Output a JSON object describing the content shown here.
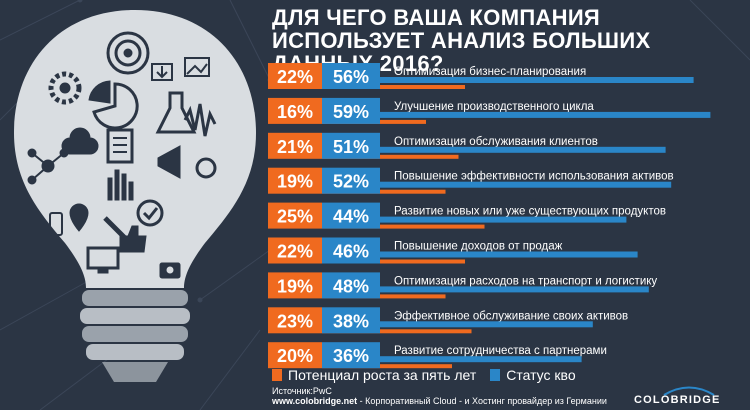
{
  "title": "ДЛЯ ЧЕГО ВАША КОМПАНИЯ ИСПОЛЬЗУЕТ АНАЛИЗ БОЛЬШИХ ДАННЫХ 2016?",
  "colors": {
    "orange": "#f06a1f",
    "blue": "#2a86c8",
    "background": "#2b3544",
    "bulb": "#d9dde1"
  },
  "chart_data": {
    "type": "bar",
    "title": "ДЛЯ ЧЕГО ВАША КОМПАНИЯ ИСПОЛЬЗУЕТ АНАЛИЗ БОЛЬШИХ ДАННЫХ 2016?",
    "orientation": "horizontal",
    "xlim": [
      0,
      100
    ],
    "categories": [
      "Оптимизация бизнес-планирования",
      "Улучшение производственного цикла",
      "Оптимизация обслуживания клиентов",
      "Повышение эффективности использования активов",
      "Развитие новых или уже существующих продуктов",
      "Повышение доходов от продаж",
      "Оптимизация расходов на транспорт и логистику",
      "Эффективное обслуживание своих активов",
      "Развитие сотрудничества с партнерами"
    ],
    "series": [
      {
        "name": "Потенциал роста за пять лет",
        "values": [
          22,
          16,
          21,
          19,
          25,
          22,
          19,
          23,
          20
        ],
        "color": "#f06a1f"
      },
      {
        "name": "Статус кво",
        "values": [
          56,
          59,
          51,
          52,
          44,
          46,
          48,
          38,
          36
        ],
        "color": "#2a86c8"
      }
    ]
  },
  "legend": {
    "growth": "Потенциал роста за пять лет",
    "status": "Статус кво"
  },
  "source": {
    "line1": "Источник:PwC",
    "site": "www.colobridge.net",
    "line2_rest": " - Корпоративный Cloud - и Хостинг провайдер из Германии"
  },
  "logo": {
    "text": "COLOBRIDGE"
  }
}
